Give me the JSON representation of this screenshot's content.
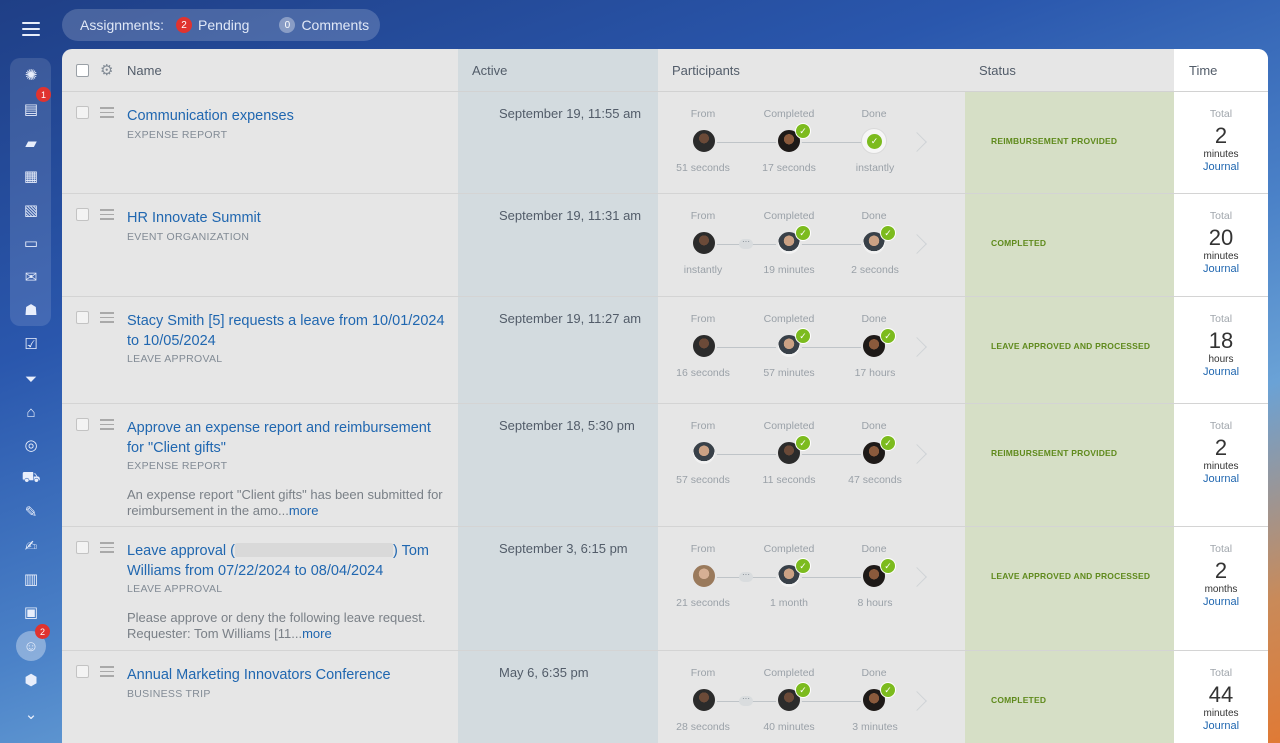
{
  "topbar": {
    "label": "Assignments:",
    "pending_count": "2",
    "pending_label": "Pending",
    "comments_count": "0",
    "comments_label": "Comments"
  },
  "sidebar": {
    "badges": {
      "feed": "1",
      "copilot": "2"
    },
    "icons": [
      "menu-icon",
      "copilot-icon",
      "feed-icon",
      "chat-icon",
      "calendar-icon",
      "document-icon",
      "drive-icon",
      "mail-icon",
      "team-icon",
      "tasks-icon",
      "crm-icon",
      "sites-icon",
      "goals-icon",
      "shop-icon",
      "automation-icon",
      "sign-icon",
      "analytics-icon",
      "contacts-icon",
      "bot-icon",
      "inventory-icon",
      "more-icon"
    ]
  },
  "header": {
    "name": "Name",
    "active": "Active",
    "participants": "Participants",
    "status": "Status",
    "time": "Time"
  },
  "stage_labels": {
    "from": "From",
    "completed": "Completed",
    "done": "Done"
  },
  "time_total_label": "Total",
  "journal_label": "Journal",
  "rows": [
    {
      "title": "Communication expenses",
      "type": "EXPENSE REPORT",
      "active": "September 19, 11:55 am",
      "from_time": "51 seconds",
      "completed_time": "17 seconds",
      "done_time": "instantly",
      "status": "REIMBURSEMENT PROVIDED",
      "total": "2",
      "unit": "minutes"
    },
    {
      "title": "HR Innovate Summit",
      "type": "EVENT ORGANIZATION",
      "active": "September 19, 11:31 am",
      "from_time": "instantly",
      "completed_time": "19 minutes",
      "done_time": "2 seconds",
      "status": "COMPLETED",
      "total": "20",
      "unit": "minutes"
    },
    {
      "title": "Stacy Smith [5] requests a leave from 10/01/2024 to 10/05/2024",
      "type": "LEAVE APPROVAL",
      "active": "September 19, 11:27 am",
      "from_time": "16 seconds",
      "completed_time": "57 minutes",
      "done_time": "17 hours",
      "status": "LEAVE APPROVED AND PROCESSED",
      "total": "18",
      "unit": "hours"
    },
    {
      "title": "Approve an expense report and reimbursement for \"Client gifts\"",
      "type": "EXPENSE REPORT",
      "description": "An expense report \"Client gifts\" has been submitted for reimbursement in the amo...",
      "more": "more",
      "active": "September 18, 5:30 pm",
      "from_time": "57 seconds",
      "completed_time": "11 seconds",
      "done_time": "47 seconds",
      "status": "REIMBURSEMENT PROVIDED",
      "total": "2",
      "unit": "minutes"
    },
    {
      "title_start": "Leave approval (",
      "title_end": ") Tom Williams from 07/22/2024 to 08/04/2024",
      "type": "LEAVE APPROVAL",
      "description": "Please approve or deny the following leave request. Requester: Tom Williams [11...",
      "more": "more",
      "active": "September 3, 6:15 pm",
      "from_time": "21 seconds",
      "completed_time": "1 month",
      "done_time": "8 hours",
      "status": "LEAVE APPROVED AND PROCESSED",
      "total": "2",
      "unit": "months"
    },
    {
      "title": "Annual Marketing Innovators Conference",
      "type": "BUSINESS TRIP",
      "active": "May 6, 6:35 pm",
      "from_time": "28 seconds",
      "completed_time": "40 minutes",
      "done_time": "3 minutes",
      "status": "COMPLETED",
      "total": "44",
      "unit": "minutes"
    }
  ],
  "colors": {
    "link": "#2067b0",
    "status_text": "#5f8a1c",
    "check": "#7cbb1e",
    "badge": "#e0332f"
  }
}
